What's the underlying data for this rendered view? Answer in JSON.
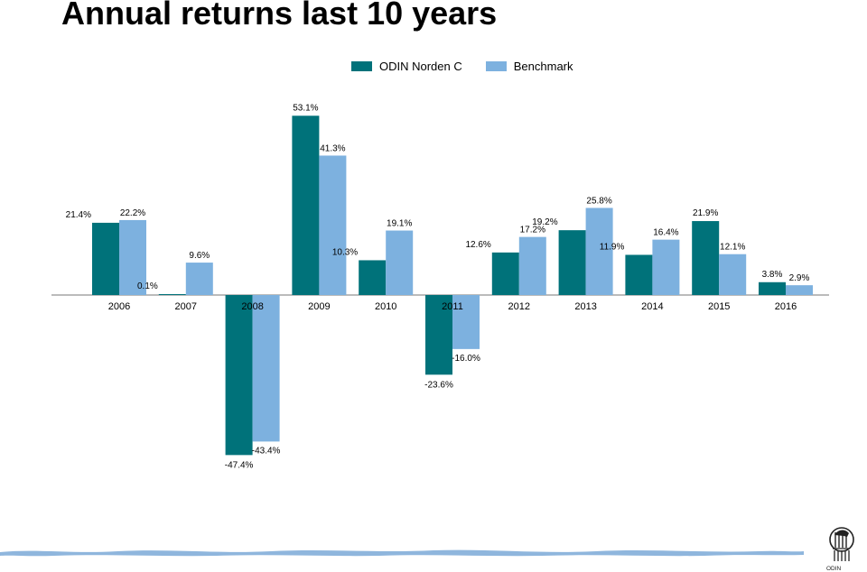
{
  "title": "Annual returns last 10 years",
  "colors": {
    "series1": "#00727A",
    "series2": "#7DB1DF",
    "axis": "#777777",
    "wave": "#8FB6DD"
  },
  "logo": {
    "text": "ODIN"
  },
  "chart_data": {
    "type": "bar",
    "title": "Annual returns last 10 years",
    "xlabel": "",
    "ylabel": "",
    "ylim": [
      -47.4,
      53.1
    ],
    "grid": false,
    "legend_position": "top-center",
    "categories": [
      "2006",
      "2007",
      "2008",
      "2009",
      "2010",
      "2011",
      "2012",
      "2013",
      "2014",
      "2015",
      "2016"
    ],
    "series": [
      {
        "name": "ODIN Norden C",
        "values": [
          21.4,
          0.1,
          -47.4,
          53.1,
          10.3,
          -23.6,
          12.6,
          19.2,
          11.9,
          21.9,
          3.8
        ],
        "labels": [
          "21.4%",
          "0.1%",
          "-47.4%",
          "53.1%",
          "10.3%",
          "-23.6%",
          "12.6%",
          "19.2%",
          "11.9%",
          "21.9%",
          "3.8%"
        ]
      },
      {
        "name": "Benchmark",
        "values": [
          22.2,
          9.6,
          -43.4,
          41.3,
          19.1,
          -16.0,
          17.2,
          25.8,
          16.4,
          12.1,
          2.9
        ],
        "labels": [
          "22.2%",
          "9.6%",
          "-43.4%",
          "41.3%",
          "19.1%",
          "-16.0%",
          "17.2%",
          "25.8%",
          "16.4%",
          "12.1%",
          "2.9%"
        ]
      }
    ]
  }
}
